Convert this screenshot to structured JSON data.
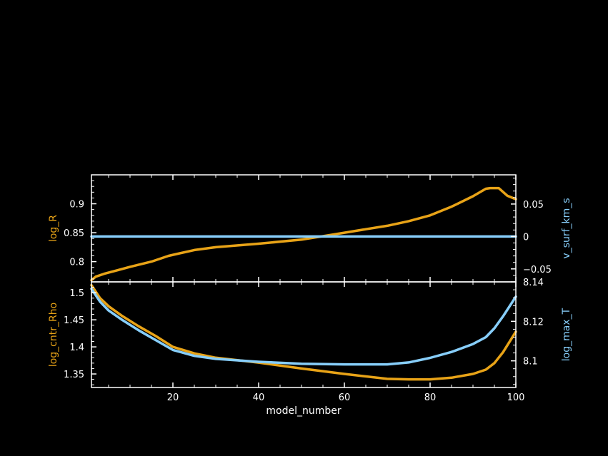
{
  "colors": {
    "background": "#000000",
    "frame": "#ffffff",
    "orange": "#E8A317",
    "blue": "#87CEFA"
  },
  "chart_data": [
    {
      "type": "line",
      "panel": "top",
      "xlabel": "",
      "xlim": [
        1,
        100
      ],
      "y_left": {
        "label": "log_R",
        "lim": [
          0.765,
          0.95
        ],
        "ticks": [
          0.8,
          0.85,
          0.9
        ],
        "tick_labels": [
          "0.8",
          "0.85",
          "0.9"
        ]
      },
      "y_right": {
        "label": "v_surf_km_s",
        "lim": [
          -0.07,
          0.095
        ],
        "ticks": [
          -0.05,
          0,
          0.05
        ],
        "tick_labels": [
          "−0.05",
          "0",
          "0.05"
        ]
      },
      "series": [
        {
          "axis": "left",
          "color": "#E8A317",
          "x": [
            1,
            2,
            4,
            7,
            10,
            15,
            19,
            25,
            30,
            40,
            50,
            60,
            65,
            70,
            75,
            80,
            85,
            90,
            93,
            94,
            96,
            98,
            100
          ],
          "y": [
            0.768,
            0.774,
            0.779,
            0.785,
            0.791,
            0.8,
            0.81,
            0.82,
            0.825,
            0.831,
            0.838,
            0.85,
            0.856,
            0.862,
            0.87,
            0.88,
            0.895,
            0.913,
            0.926,
            0.927,
            0.927,
            0.914,
            0.908
          ]
        },
        {
          "axis": "right",
          "color": "#87CEFA",
          "x": [
            1,
            100
          ],
          "y": [
            0,
            0
          ]
        }
      ]
    },
    {
      "type": "line",
      "panel": "bottom",
      "xlabel": "model_number",
      "xlim": [
        1,
        100
      ],
      "x_ticks": [
        20,
        40,
        60,
        80,
        100
      ],
      "x_tick_labels": [
        "20",
        "40",
        "60",
        "80",
        "100"
      ],
      "y_left": {
        "label": "log_cntr_Rho",
        "lim": [
          1.325,
          1.52
        ],
        "ticks": [
          1.35,
          1.4,
          1.45,
          1.5
        ],
        "tick_labels": [
          "1.35",
          "1.4",
          "1.45",
          "1.5"
        ]
      },
      "y_right": {
        "label": "log_max_T",
        "lim": [
          8.0865,
          8.14
        ],
        "ticks": [
          8.1,
          8.12,
          8.14
        ],
        "tick_labels": [
          "8.1",
          "8.12",
          "8.14"
        ]
      },
      "series": [
        {
          "axis": "left",
          "color": "#E8A317",
          "x": [
            1,
            3,
            5,
            8,
            12,
            16,
            20,
            25,
            30,
            40,
            50,
            60,
            70,
            75,
            80,
            85,
            90,
            93,
            95,
            97,
            100
          ],
          "y": [
            1.514,
            1.49,
            1.475,
            1.458,
            1.438,
            1.42,
            1.4,
            1.388,
            1.38,
            1.371,
            1.36,
            1.35,
            1.341,
            1.34,
            1.34,
            1.343,
            1.35,
            1.358,
            1.37,
            1.39,
            1.428
          ]
        },
        {
          "axis": "right",
          "color": "#87CEFA",
          "x": [
            1,
            3,
            5,
            8,
            12,
            16,
            20,
            25,
            30,
            40,
            50,
            60,
            70,
            75,
            80,
            85,
            90,
            93,
            95,
            97,
            100
          ],
          "y": [
            8.1365,
            8.13,
            8.1255,
            8.121,
            8.1155,
            8.1105,
            8.1055,
            8.1025,
            8.101,
            8.0995,
            8.0985,
            8.0982,
            8.0982,
            8.0992,
            8.1015,
            8.1045,
            8.1085,
            8.112,
            8.1165,
            8.1225,
            8.1325
          ]
        }
      ]
    }
  ]
}
